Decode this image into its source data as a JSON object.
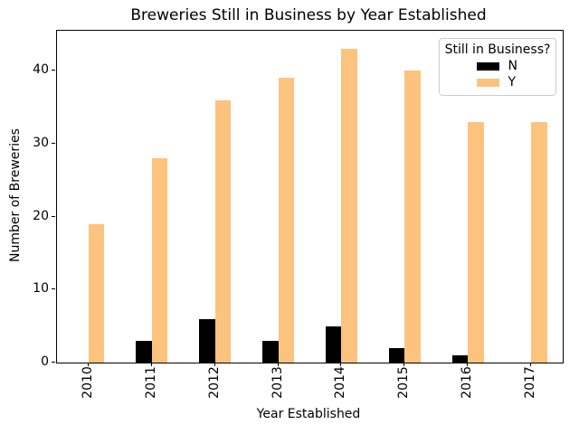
{
  "chart_data": {
    "type": "bar",
    "title": "Breweries Still in Business by Year Established",
    "xlabel": "Year Established",
    "ylabel": "Number of Breweries",
    "categories": [
      "2010",
      "2011",
      "2012",
      "2013",
      "2014",
      "2015",
      "2016",
      "2017"
    ],
    "series": [
      {
        "name": "N",
        "color": "#000000",
        "values": [
          0,
          3,
          6,
          3,
          5,
          2,
          1,
          0
        ]
      },
      {
        "name": "Y",
        "color": "#fcc37e",
        "values": [
          19,
          28,
          36,
          39,
          43,
          40,
          33,
          33
        ]
      }
    ],
    "ylim": [
      0,
      45.5
    ],
    "yticks": [
      0,
      10,
      20,
      30,
      40
    ],
    "grid": false,
    "legend": {
      "title": "Still in Business?",
      "position": "upper-right",
      "entries": [
        {
          "label": "N",
          "color": "#000000"
        },
        {
          "label": "Y",
          "color": "#fcc37e"
        }
      ]
    }
  }
}
